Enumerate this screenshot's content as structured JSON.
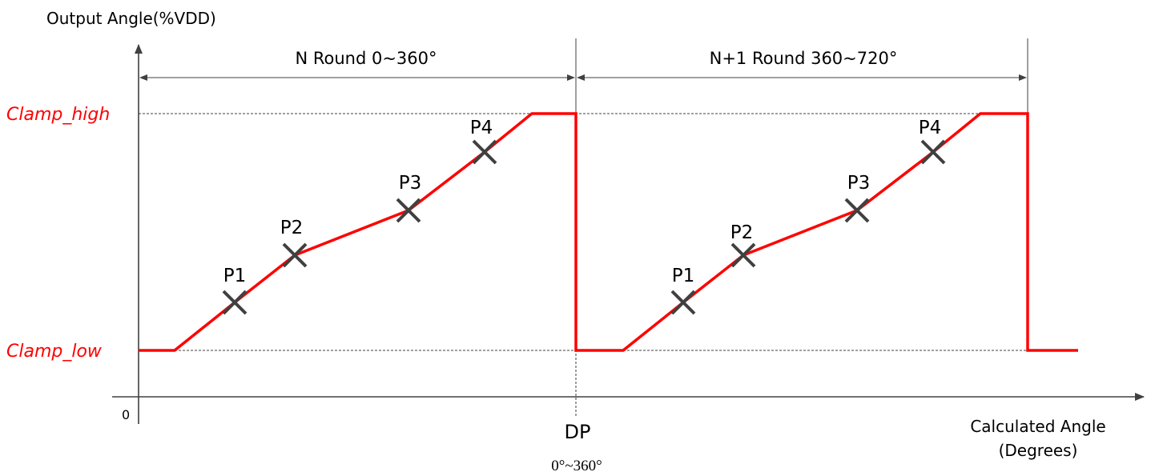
{
  "axes": {
    "y_title": "Output Angle(%VDD)",
    "x_title_line1": "Calculated Angle",
    "x_title_line2": "(Degrees)",
    "origin": "0"
  },
  "levels": {
    "high": "Clamp_high",
    "low": "Clamp_low",
    "color": "#ff0000"
  },
  "rounds": [
    {
      "label": "N Round 0~360°"
    },
    {
      "label": "N+1 Round 360~720°"
    }
  ],
  "breakpoints": [
    "P1",
    "P2",
    "P3",
    "P4"
  ],
  "divider": {
    "label": "DP",
    "sublabel": "0°~360°"
  },
  "colors": {
    "curve": "#ff0000",
    "marker": "#404040",
    "axis": "#404040",
    "guide": "#404040"
  }
}
